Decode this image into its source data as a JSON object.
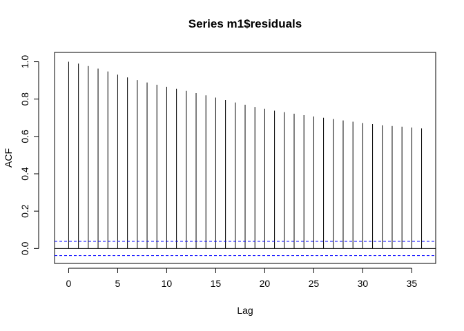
{
  "chart_data": {
    "type": "bar",
    "title": "Series  m1$residuals",
    "xlabel": "Lag",
    "ylabel": "ACF",
    "xlim": [
      -1.44,
      37.44
    ],
    "ylim": [
      -0.08,
      1.05
    ],
    "x_ticks": [
      0,
      5,
      10,
      15,
      20,
      25,
      30,
      35
    ],
    "y_ticks": [
      0.0,
      0.2,
      0.4,
      0.6,
      0.8,
      1.0
    ],
    "x_tick_labels": [
      "0",
      "5",
      "10",
      "15",
      "20",
      "25",
      "30",
      "35"
    ],
    "y_tick_labels": [
      "0.0",
      "0.2",
      "0.4",
      "0.6",
      "0.8",
      "1.0"
    ],
    "lags": [
      0,
      1,
      2,
      3,
      4,
      5,
      6,
      7,
      8,
      9,
      10,
      11,
      12,
      13,
      14,
      15,
      16,
      17,
      18,
      19,
      20,
      21,
      22,
      23,
      24,
      25,
      26,
      27,
      28,
      29,
      30,
      31,
      32,
      33,
      34,
      35,
      36
    ],
    "acf": [
      1.0,
      0.99,
      0.977,
      0.963,
      0.948,
      0.931,
      0.916,
      0.902,
      0.889,
      0.877,
      0.866,
      0.855,
      0.844,
      0.832,
      0.82,
      0.808,
      0.795,
      0.782,
      0.77,
      0.758,
      0.748,
      0.738,
      0.73,
      0.722,
      0.714,
      0.707,
      0.7,
      0.693,
      0.686,
      0.679,
      0.672,
      0.666,
      0.66,
      0.656,
      0.652,
      0.648,
      0.643
    ],
    "confidence_bounds": [
      0.038,
      -0.038
    ],
    "zero_line": 0,
    "grid": false,
    "colors": {
      "bars": "#000000",
      "confidence": "#0000ff",
      "axes": "#000000"
    }
  }
}
